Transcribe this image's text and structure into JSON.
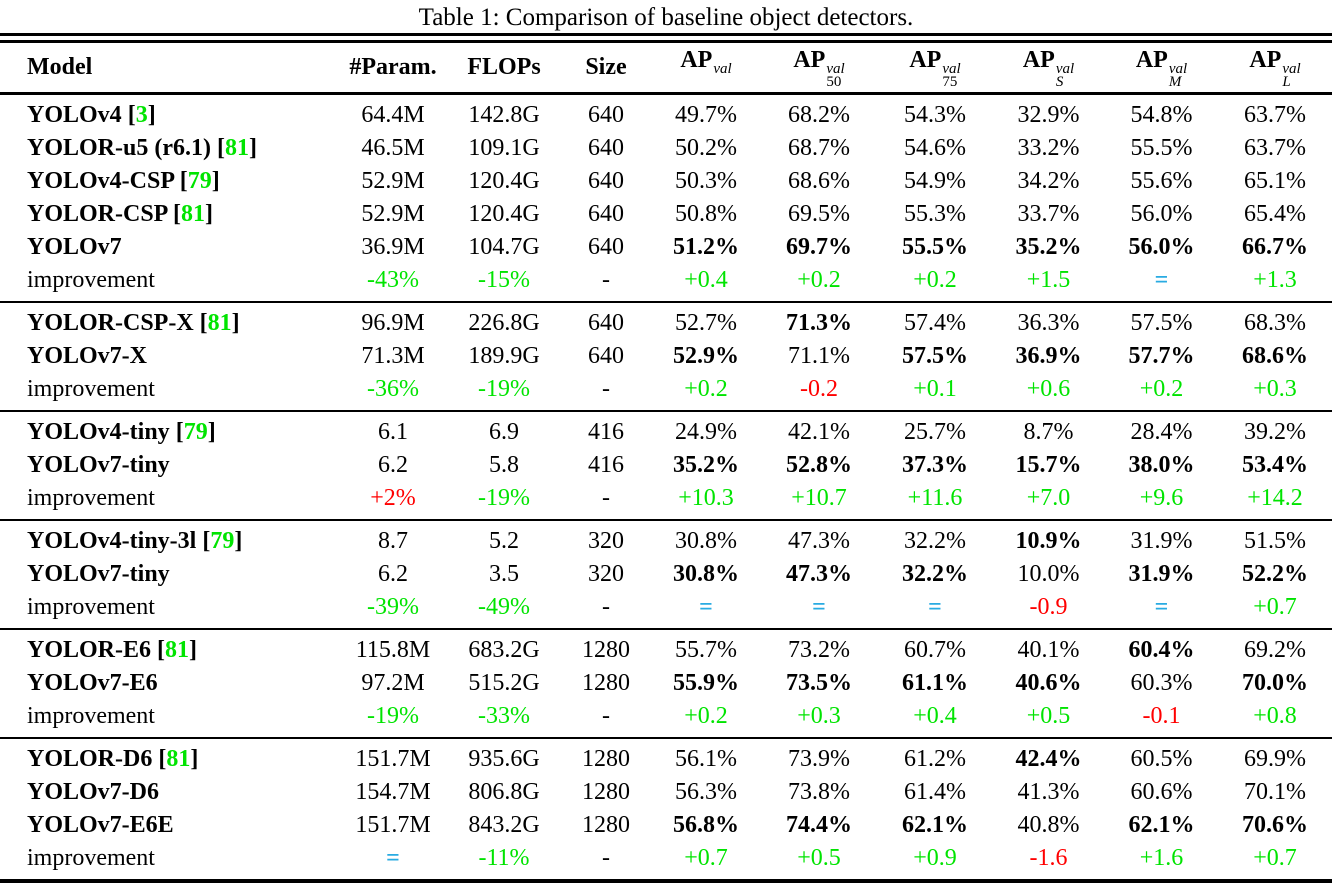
{
  "caption": "Table 1: Comparison of baseline object detectors.",
  "colors": {
    "green": "#00e400",
    "red": "#ff0000",
    "cyan": "#29abe2"
  },
  "table": {
    "columns": [
      {
        "key": "model",
        "text": "Model"
      },
      {
        "key": "params",
        "text": "#Param."
      },
      {
        "key": "flops",
        "text": "FLOPs"
      },
      {
        "key": "size",
        "text": "Size"
      },
      {
        "key": "ap",
        "ap": true,
        "base": "AP",
        "sup": "val",
        "sub": ""
      },
      {
        "key": "ap50",
        "ap": true,
        "base": "AP",
        "sup": "val",
        "sub": "50"
      },
      {
        "key": "ap75",
        "ap": true,
        "base": "AP",
        "sup": "val",
        "sub": "75"
      },
      {
        "key": "ap_s",
        "ap": true,
        "base": "AP",
        "sup": "val",
        "sub": "S",
        "sub_italic": true
      },
      {
        "key": "ap_m",
        "ap": true,
        "base": "AP",
        "sup": "val",
        "sub": "M",
        "sub_italic": true
      },
      {
        "key": "ap_l",
        "ap": true,
        "base": "AP",
        "sup": "val",
        "sub": "L",
        "sub_italic": true
      }
    ],
    "groups": [
      {
        "rows": [
          {
            "model": {
              "name": "YOLOv4",
              "cite": "3"
            },
            "cells": [
              [
                "64.4M"
              ],
              [
                "142.8G"
              ],
              [
                "640"
              ],
              [
                "49.7%"
              ],
              [
                "68.2%"
              ],
              [
                "54.3%"
              ],
              [
                "32.9%"
              ],
              [
                "54.8%"
              ],
              [
                "63.7%"
              ]
            ]
          },
          {
            "model": {
              "name": "YOLOR-u5 (r6.1)",
              "cite": "81"
            },
            "cells": [
              [
                "46.5M"
              ],
              [
                "109.1G"
              ],
              [
                "640"
              ],
              [
                "50.2%"
              ],
              [
                "68.7%"
              ],
              [
                "54.6%"
              ],
              [
                "33.2%"
              ],
              [
                "55.5%"
              ],
              [
                "63.7%"
              ]
            ]
          },
          {
            "model": {
              "name": "YOLOv4-CSP",
              "cite": "79"
            },
            "cells": [
              [
                "52.9M"
              ],
              [
                "120.4G"
              ],
              [
                "640"
              ],
              [
                "50.3%"
              ],
              [
                "68.6%"
              ],
              [
                "54.9%"
              ],
              [
                "34.2%"
              ],
              [
                "55.6%"
              ],
              [
                "65.1%"
              ]
            ]
          },
          {
            "model": {
              "name": "YOLOR-CSP",
              "cite": "81"
            },
            "cells": [
              [
                "52.9M"
              ],
              [
                "120.4G"
              ],
              [
                "640"
              ],
              [
                "50.8%"
              ],
              [
                "69.5%"
              ],
              [
                "55.3%"
              ],
              [
                "33.7%"
              ],
              [
                "56.0%"
              ],
              [
                "65.4%"
              ]
            ]
          },
          {
            "model": {
              "name": "YOLOv7"
            },
            "cells": [
              [
                "36.9M"
              ],
              [
                "104.7G"
              ],
              [
                "640"
              ],
              [
                "51.2%",
                "b"
              ],
              [
                "69.7%",
                "b"
              ],
              [
                "55.5%",
                "b"
              ],
              [
                "35.2%",
                "b"
              ],
              [
                "56.0%",
                "b"
              ],
              [
                "66.7%",
                "b"
              ]
            ]
          },
          {
            "model": {
              "name": "improvement",
              "improvement": true
            },
            "cells": [
              [
                "-43%",
                "g"
              ],
              [
                "-15%",
                "g"
              ],
              [
                "-"
              ],
              [
                "+0.4",
                "g"
              ],
              [
                "+0.2",
                "g"
              ],
              [
                "+0.2",
                "g"
              ],
              [
                "+1.5",
                "g"
              ],
              [
                "=",
                "c"
              ],
              [
                "+1.3",
                "g"
              ]
            ]
          }
        ]
      },
      {
        "rows": [
          {
            "model": {
              "name": "YOLOR-CSP-X",
              "cite": "81"
            },
            "cells": [
              [
                "96.9M"
              ],
              [
                "226.8G"
              ],
              [
                "640"
              ],
              [
                "52.7%"
              ],
              [
                "71.3%",
                "b"
              ],
              [
                "57.4%"
              ],
              [
                "36.3%"
              ],
              [
                "57.5%"
              ],
              [
                "68.3%"
              ]
            ]
          },
          {
            "model": {
              "name": "YOLOv7-X"
            },
            "cells": [
              [
                "71.3M"
              ],
              [
                "189.9G"
              ],
              [
                "640"
              ],
              [
                "52.9%",
                "b"
              ],
              [
                "71.1%"
              ],
              [
                "57.5%",
                "b"
              ],
              [
                "36.9%",
                "b"
              ],
              [
                "57.7%",
                "b"
              ],
              [
                "68.6%",
                "b"
              ]
            ]
          },
          {
            "model": {
              "name": "improvement",
              "improvement": true
            },
            "cells": [
              [
                "-36%",
                "g"
              ],
              [
                "-19%",
                "g"
              ],
              [
                "-"
              ],
              [
                "+0.2",
                "g"
              ],
              [
                "-0.2",
                "r"
              ],
              [
                "+0.1",
                "g"
              ],
              [
                "+0.6",
                "g"
              ],
              [
                "+0.2",
                "g"
              ],
              [
                "+0.3",
                "g"
              ]
            ]
          }
        ]
      },
      {
        "rows": [
          {
            "model": {
              "name": "YOLOv4-tiny",
              "cite": "79"
            },
            "cells": [
              [
                "6.1"
              ],
              [
                "6.9"
              ],
              [
                "416"
              ],
              [
                "24.9%"
              ],
              [
                "42.1%"
              ],
              [
                "25.7%"
              ],
              [
                "8.7%"
              ],
              [
                "28.4%"
              ],
              [
                "39.2%"
              ]
            ]
          },
          {
            "model": {
              "name": "YOLOv7-tiny"
            },
            "cells": [
              [
                "6.2"
              ],
              [
                "5.8"
              ],
              [
                "416"
              ],
              [
                "35.2%",
                "b"
              ],
              [
                "52.8%",
                "b"
              ],
              [
                "37.3%",
                "b"
              ],
              [
                "15.7%",
                "b"
              ],
              [
                "38.0%",
                "b"
              ],
              [
                "53.4%",
                "b"
              ]
            ]
          },
          {
            "model": {
              "name": "improvement",
              "improvement": true
            },
            "cells": [
              [
                "+2%",
                "r"
              ],
              [
                "-19%",
                "g"
              ],
              [
                "-"
              ],
              [
                "+10.3",
                "g"
              ],
              [
                "+10.7",
                "g"
              ],
              [
                "+11.6",
                "g"
              ],
              [
                "+7.0",
                "g"
              ],
              [
                "+9.6",
                "g"
              ],
              [
                "+14.2",
                "g"
              ]
            ]
          }
        ]
      },
      {
        "rows": [
          {
            "model": {
              "name": "YOLOv4-tiny-3l",
              "cite": "79"
            },
            "cells": [
              [
                "8.7"
              ],
              [
                "5.2"
              ],
              [
                "320"
              ],
              [
                "30.8%"
              ],
              [
                "47.3%"
              ],
              [
                "32.2%"
              ],
              [
                "10.9%",
                "b"
              ],
              [
                "31.9%"
              ],
              [
                "51.5%"
              ]
            ]
          },
          {
            "model": {
              "name": "YOLOv7-tiny"
            },
            "cells": [
              [
                "6.2"
              ],
              [
                "3.5"
              ],
              [
                "320"
              ],
              [
                "30.8%",
                "b"
              ],
              [
                "47.3%",
                "b"
              ],
              [
                "32.2%",
                "b"
              ],
              [
                "10.0%"
              ],
              [
                "31.9%",
                "b"
              ],
              [
                "52.2%",
                "b"
              ]
            ]
          },
          {
            "model": {
              "name": "improvement",
              "improvement": true
            },
            "cells": [
              [
                "-39%",
                "g"
              ],
              [
                "-49%",
                "g"
              ],
              [
                "-"
              ],
              [
                "=",
                "c"
              ],
              [
                "=",
                "c"
              ],
              [
                "=",
                "c"
              ],
              [
                "-0.9",
                "r"
              ],
              [
                "=",
                "c"
              ],
              [
                "+0.7",
                "g"
              ]
            ]
          }
        ]
      },
      {
        "rows": [
          {
            "model": {
              "name": "YOLOR-E6",
              "cite": "81"
            },
            "cells": [
              [
                "115.8M"
              ],
              [
                "683.2G"
              ],
              [
                "1280"
              ],
              [
                "55.7%"
              ],
              [
                "73.2%"
              ],
              [
                "60.7%"
              ],
              [
                "40.1%"
              ],
              [
                "60.4%",
                "b"
              ],
              [
                "69.2%"
              ]
            ]
          },
          {
            "model": {
              "name": "YOLOv7-E6"
            },
            "cells": [
              [
                "97.2M"
              ],
              [
                "515.2G"
              ],
              [
                "1280"
              ],
              [
                "55.9%",
                "b"
              ],
              [
                "73.5%",
                "b"
              ],
              [
                "61.1%",
                "b"
              ],
              [
                "40.6%",
                "b"
              ],
              [
                "60.3%"
              ],
              [
                "70.0%",
                "b"
              ]
            ]
          },
          {
            "model": {
              "name": "improvement",
              "improvement": true
            },
            "cells": [
              [
                "-19%",
                "g"
              ],
              [
                "-33%",
                "g"
              ],
              [
                "-"
              ],
              [
                "+0.2",
                "g"
              ],
              [
                "+0.3",
                "g"
              ],
              [
                "+0.4",
                "g"
              ],
              [
                "+0.5",
                "g"
              ],
              [
                "-0.1",
                "r"
              ],
              [
                "+0.8",
                "g"
              ]
            ]
          }
        ]
      },
      {
        "rows": [
          {
            "model": {
              "name": "YOLOR-D6",
              "cite": "81"
            },
            "cells": [
              [
                "151.7M"
              ],
              [
                "935.6G"
              ],
              [
                "1280"
              ],
              [
                "56.1%"
              ],
              [
                "73.9%"
              ],
              [
                "61.2%"
              ],
              [
                "42.4%",
                "b"
              ],
              [
                "60.5%"
              ],
              [
                "69.9%"
              ]
            ]
          },
          {
            "model": {
              "name": "YOLOv7-D6"
            },
            "cells": [
              [
                "154.7M"
              ],
              [
                "806.8G"
              ],
              [
                "1280"
              ],
              [
                "56.3%"
              ],
              [
                "73.8%"
              ],
              [
                "61.4%"
              ],
              [
                "41.3%"
              ],
              [
                "60.6%"
              ],
              [
                "70.1%"
              ]
            ]
          },
          {
            "model": {
              "name": "YOLOv7-E6E"
            },
            "cells": [
              [
                "151.7M"
              ],
              [
                "843.2G"
              ],
              [
                "1280"
              ],
              [
                "56.8%",
                "b"
              ],
              [
                "74.4%",
                "b"
              ],
              [
                "62.1%",
                "b"
              ],
              [
                "40.8%"
              ],
              [
                "62.1%",
                "b"
              ],
              [
                "70.6%",
                "b"
              ]
            ]
          },
          {
            "model": {
              "name": "improvement",
              "improvement": true
            },
            "cells": [
              [
                "=",
                "c"
              ],
              [
                "-11%",
                "g"
              ],
              [
                "-"
              ],
              [
                "+0.7",
                "g"
              ],
              [
                "+0.5",
                "g"
              ],
              [
                "+0.9",
                "g"
              ],
              [
                "-1.6",
                "r"
              ],
              [
                "+1.6",
                "g"
              ],
              [
                "+0.7",
                "g"
              ]
            ]
          }
        ]
      }
    ]
  }
}
